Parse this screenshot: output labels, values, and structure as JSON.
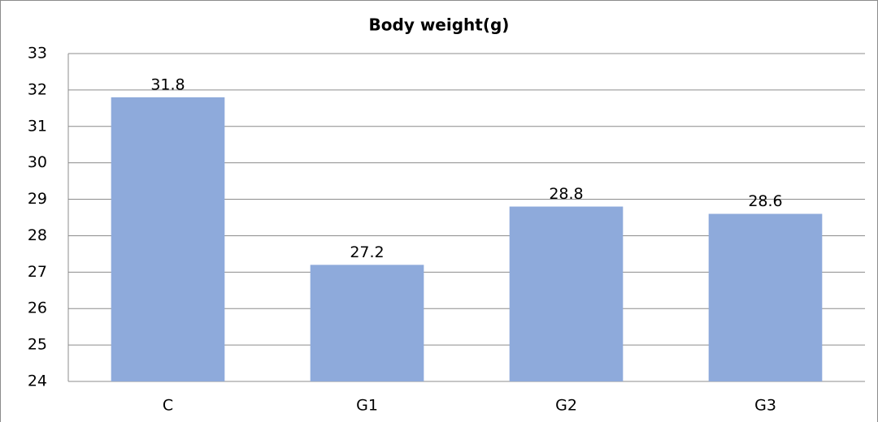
{
  "chart_data": {
    "type": "bar",
    "title": "Body weight(g)",
    "categories": [
      "C",
      "G1",
      "G2",
      "G3"
    ],
    "values": [
      31.8,
      27.2,
      28.8,
      28.6
    ],
    "color": "#8eaadb",
    "ylim": [
      24,
      33
    ],
    "yticks": [
      24,
      25,
      26,
      27,
      28,
      29,
      30,
      31,
      32,
      33
    ],
    "grid": true
  }
}
